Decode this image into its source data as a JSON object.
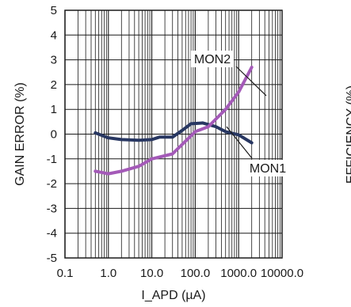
{
  "chart_data": {
    "type": "line",
    "xlabel": "I_APD (µA)",
    "ylabel": "GAIN ERROR (%)",
    "right_axis_label": "EFFICIENCY (%)",
    "x_scale": "log",
    "xlim": [
      0.1,
      10000
    ],
    "ylim": [
      -5,
      5
    ],
    "x_tick_labels": [
      "0.1",
      "1.0",
      "10.0",
      "100.0",
      "1000.0",
      "10000.0"
    ],
    "y_tick_labels": [
      "5",
      "4",
      "3",
      "2",
      "1",
      "0",
      "-1",
      "-2",
      "-3",
      "-4",
      "-5"
    ],
    "grid": true,
    "series": [
      {
        "name": "MON1",
        "color": "#283762",
        "points": [
          [
            0.5,
            0.05
          ],
          [
            1.0,
            -0.15
          ],
          [
            2.0,
            -0.22
          ],
          [
            5.0,
            -0.25
          ],
          [
            10.0,
            -0.22
          ],
          [
            15.0,
            -0.12
          ],
          [
            30.0,
            -0.12
          ],
          [
            50.0,
            0.15
          ],
          [
            80.0,
            0.42
          ],
          [
            150.0,
            0.45
          ],
          [
            300.0,
            0.3
          ],
          [
            500.0,
            0.1
          ],
          [
            1000.0,
            -0.03
          ],
          [
            2000.0,
            -0.35
          ]
        ]
      },
      {
        "name": "MON2",
        "color": "#a45ab8",
        "points": [
          [
            0.5,
            -1.5
          ],
          [
            1.0,
            -1.6
          ],
          [
            2.0,
            -1.5
          ],
          [
            5.0,
            -1.3
          ],
          [
            10.0,
            -1.0
          ],
          [
            30.0,
            -0.8
          ],
          [
            100.0,
            0.1
          ],
          [
            200.0,
            0.3
          ],
          [
            500.0,
            1.0
          ],
          [
            1000.0,
            1.7
          ],
          [
            2000.0,
            2.7
          ]
        ]
      }
    ]
  }
}
